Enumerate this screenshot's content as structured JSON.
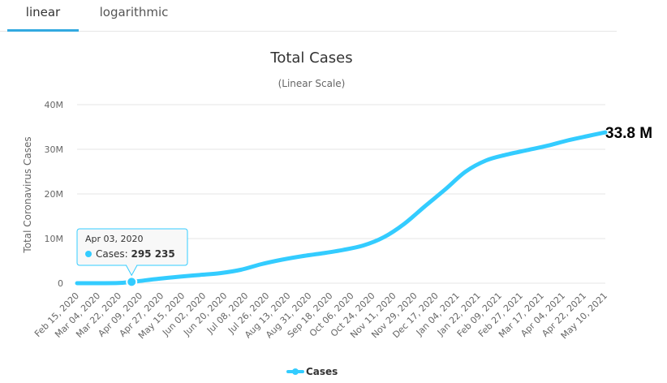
{
  "tabs": [
    {
      "label": "linear",
      "active": true
    },
    {
      "label": "logarithmic",
      "active": false
    }
  ],
  "chart_data": {
    "type": "line",
    "title": "Total Cases",
    "subtitle": "(Linear Scale)",
    "ylabel": "Total Coronavirus Cases",
    "ylim": [
      0,
      40000000
    ],
    "yticks": [
      {
        "value": 0,
        "label": "0"
      },
      {
        "value": 10000000,
        "label": "10M"
      },
      {
        "value": 20000000,
        "label": "20M"
      },
      {
        "value": 30000000,
        "label": "30M"
      },
      {
        "value": 40000000,
        "label": "40M"
      }
    ],
    "x_range": [
      "2020-02-15",
      "2021-05-25"
    ],
    "x_tick_labels": [
      "Feb 15, 2020",
      "Mar 04, 2020",
      "Mar 22, 2020",
      "Apr 09, 2020",
      "Apr 27, 2020",
      "May 15, 2020",
      "Jun 02, 2020",
      "Jun 20, 2020",
      "Jul 08, 2020",
      "Jul 26, 2020",
      "Aug 13, 2020",
      "Aug 31, 2020",
      "Sep 18, 2020",
      "Oct 06, 2020",
      "Oct 24, 2020",
      "Nov 11, 2020",
      "Nov 29, 2020",
      "Dec 17, 2020",
      "Jan 04, 2021",
      "Jan 22, 2021",
      "Feb 09, 2021",
      "Feb 27, 2021",
      "Mar 17, 2021",
      "Apr 04, 2021",
      "Apr 22, 2021",
      "May 10, 2021"
    ],
    "series": [
      {
        "name": "Cases",
        "color": "#33ccff",
        "points": [
          [
            "2020-02-15",
            15
          ],
          [
            "2020-03-04",
            150
          ],
          [
            "2020-03-22",
            35000
          ],
          [
            "2020-04-03",
            295235
          ],
          [
            "2020-04-09",
            460000
          ],
          [
            "2020-04-27",
            1000000
          ],
          [
            "2020-05-15",
            1450000
          ],
          [
            "2020-06-02",
            1850000
          ],
          [
            "2020-06-20",
            2250000
          ],
          [
            "2020-07-08",
            3000000
          ],
          [
            "2020-07-26",
            4250000
          ],
          [
            "2020-08-13",
            5250000
          ],
          [
            "2020-08-31",
            6050000
          ],
          [
            "2020-09-18",
            6700000
          ],
          [
            "2020-10-06",
            7450000
          ],
          [
            "2020-10-24",
            8450000
          ],
          [
            "2020-11-11",
            10300000
          ],
          [
            "2020-11-29",
            13300000
          ],
          [
            "2020-12-17",
            17200000
          ],
          [
            "2021-01-04",
            21000000
          ],
          [
            "2021-01-22",
            25000000
          ],
          [
            "2021-02-09",
            27500000
          ],
          [
            "2021-02-27",
            28800000
          ],
          [
            "2021-03-17",
            29800000
          ],
          [
            "2021-04-04",
            30800000
          ],
          [
            "2021-04-22",
            32000000
          ],
          [
            "2021-05-10",
            33000000
          ],
          [
            "2021-05-25",
            33800000
          ]
        ]
      }
    ],
    "end_label": "33.8 M",
    "tooltip": {
      "date_label": "Apr 03, 2020",
      "series_name": "Cases",
      "value_label": "295 235",
      "date": "2020-04-03",
      "value": 295235
    },
    "legend": {
      "label": "Cases",
      "position": "bottom-center"
    },
    "grid": true
  }
}
